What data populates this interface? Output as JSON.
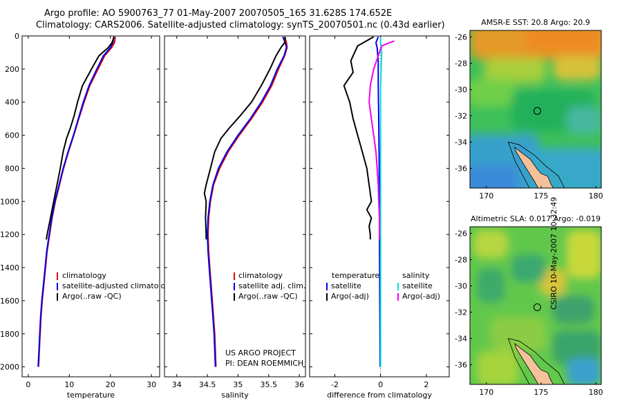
{
  "header": {
    "line1": "Argo profile: AO 5900763_77 01-May-2007 20070505_165 31.628S 174.652E",
    "line2": "Climatology: CARS2006. Satellite-adjusted climatology: synTS_20070501.nc (0.43d earlier)"
  },
  "credit": {
    "project": "US ARGO PROJECT",
    "pi": "PI: DEAN ROEMMICH",
    "vertical": "CSIRO 10-May-2007 10:32:49"
  },
  "colors": {
    "climatology": "#dd0000",
    "satellite": "#0000ee",
    "argo": "#000000",
    "sal_satellite": "#00dddd",
    "sal_argo": "#ee00ee"
  },
  "chart_data": [
    {
      "type": "line",
      "id": "temperature",
      "xlabel": "temperature",
      "ylabel": "",
      "xlim": [
        -1.5,
        32
      ],
      "ylim": [
        2060,
        0
      ],
      "xticks": [
        0,
        10,
        20,
        30
      ],
      "yticks": [
        0,
        200,
        400,
        600,
        800,
        1000,
        1200,
        1400,
        1600,
        1800,
        2000
      ],
      "legend": [
        "climatology",
        "satellite-adjusted climatology",
        "Argo(..raw -QC)"
      ],
      "series": [
        {
          "name": "climatology",
          "color": "#dd0000",
          "points": [
            [
              21.2,
              5
            ],
            [
              21.0,
              40
            ],
            [
              20.3,
              70
            ],
            [
              18.6,
              120
            ],
            [
              17.0,
              200
            ],
            [
              15.0,
              300
            ],
            [
              13.6,
              400
            ],
            [
              12.3,
              500
            ],
            [
              11.1,
              600
            ],
            [
              9.8,
              700
            ],
            [
              8.6,
              800
            ],
            [
              7.6,
              900
            ],
            [
              6.6,
              1000
            ],
            [
              5.8,
              1100
            ],
            [
              5.2,
              1200
            ],
            [
              4.6,
              1300
            ],
            [
              4.2,
              1400
            ],
            [
              3.8,
              1500
            ],
            [
              3.4,
              1600
            ],
            [
              3.1,
              1700
            ],
            [
              2.9,
              1800
            ],
            [
              2.7,
              1900
            ],
            [
              2.5,
              2000
            ]
          ]
        },
        {
          "name": "satellite",
          "color": "#0000ee",
          "points": [
            [
              20.8,
              5
            ],
            [
              20.6,
              40
            ],
            [
              20.0,
              70
            ],
            [
              18.3,
              120
            ],
            [
              16.7,
              200
            ],
            [
              14.8,
              300
            ],
            [
              13.4,
              400
            ],
            [
              12.2,
              500
            ],
            [
              11.0,
              600
            ],
            [
              9.7,
              700
            ],
            [
              8.5,
              800
            ],
            [
              7.5,
              900
            ],
            [
              6.5,
              1000
            ],
            [
              5.7,
              1100
            ],
            [
              5.1,
              1200
            ],
            [
              4.5,
              1300
            ],
            [
              4.1,
              1400
            ],
            [
              3.7,
              1500
            ],
            [
              3.3,
              1600
            ],
            [
              3.0,
              1700
            ],
            [
              2.8,
              1800
            ],
            [
              2.6,
              1900
            ],
            [
              2.4,
              2000
            ]
          ]
        },
        {
          "name": "Argo",
          "color": "#000000",
          "points": [
            [
              20.9,
              5
            ],
            [
              20.4,
              40
            ],
            [
              19.5,
              70
            ],
            [
              17.2,
              120
            ],
            [
              15.4,
              200
            ],
            [
              13.2,
              300
            ],
            [
              12.0,
              400
            ],
            [
              11.2,
              480
            ],
            [
              10.2,
              560
            ],
            [
              9.3,
              620
            ],
            [
              8.5,
              700
            ],
            [
              7.8,
              800
            ],
            [
              7.0,
              900
            ],
            [
              6.2,
              1000
            ],
            [
              5.4,
              1100
            ],
            [
              4.6,
              1200
            ],
            [
              4.4,
              1230
            ]
          ]
        }
      ]
    },
    {
      "type": "line",
      "id": "salinity",
      "xlabel": "salinity",
      "ylabel": "",
      "xlim": [
        33.8,
        36.1
      ],
      "ylim": [
        2060,
        0
      ],
      "xticks": [
        34,
        34.5,
        35,
        35.5,
        36
      ],
      "legend": [
        "climatology",
        "satellite adj. clim.",
        "Argo(..raw -QC)"
      ],
      "series": [
        {
          "name": "climatology",
          "color": "#dd0000",
          "points": [
            [
              35.76,
              5
            ],
            [
              35.79,
              40
            ],
            [
              35.8,
              70
            ],
            [
              35.76,
              120
            ],
            [
              35.66,
              200
            ],
            [
              35.55,
              300
            ],
            [
              35.4,
              400
            ],
            [
              35.22,
              500
            ],
            [
              35.02,
              600
            ],
            [
              34.84,
              700
            ],
            [
              34.7,
              800
            ],
            [
              34.6,
              900
            ],
            [
              34.55,
              1000
            ],
            [
              34.52,
              1100
            ],
            [
              34.51,
              1200
            ],
            [
              34.52,
              1300
            ],
            [
              34.54,
              1400
            ],
            [
              34.56,
              1500
            ],
            [
              34.58,
              1600
            ],
            [
              34.6,
              1700
            ],
            [
              34.62,
              1800
            ],
            [
              34.63,
              1900
            ],
            [
              34.64,
              2000
            ]
          ]
        },
        {
          "name": "satellite",
          "color": "#0000ee",
          "points": [
            [
              35.73,
              5
            ],
            [
              35.77,
              40
            ],
            [
              35.79,
              70
            ],
            [
              35.75,
              120
            ],
            [
              35.64,
              200
            ],
            [
              35.53,
              300
            ],
            [
              35.38,
              400
            ],
            [
              35.2,
              500
            ],
            [
              35.0,
              600
            ],
            [
              34.82,
              700
            ],
            [
              34.68,
              800
            ],
            [
              34.59,
              900
            ],
            [
              34.54,
              1000
            ],
            [
              34.51,
              1100
            ],
            [
              34.5,
              1200
            ],
            [
              34.51,
              1300
            ],
            [
              34.53,
              1400
            ],
            [
              34.55,
              1500
            ],
            [
              34.57,
              1600
            ],
            [
              34.59,
              1700
            ],
            [
              34.61,
              1800
            ],
            [
              34.62,
              1900
            ],
            [
              34.63,
              2000
            ]
          ]
        },
        {
          "name": "Argo",
          "color": "#000000",
          "points": [
            [
              35.77,
              5
            ],
            [
              35.76,
              40
            ],
            [
              35.7,
              70
            ],
            [
              35.62,
              120
            ],
            [
              35.52,
              200
            ],
            [
              35.38,
              300
            ],
            [
              35.22,
              400
            ],
            [
              35.04,
              480
            ],
            [
              34.85,
              560
            ],
            [
              34.72,
              620
            ],
            [
              34.62,
              700
            ],
            [
              34.55,
              800
            ],
            [
              34.48,
              900
            ],
            [
              34.45,
              950
            ],
            [
              34.48,
              1000
            ],
            [
              34.47,
              1100
            ],
            [
              34.48,
              1200
            ],
            [
              34.48,
              1230
            ]
          ]
        }
      ]
    },
    {
      "type": "line",
      "id": "difference",
      "xlabel": "difference from climatology",
      "ylabel": "",
      "xlim": [
        -3.1,
        3.0
      ],
      "ylim": [
        2060,
        0
      ],
      "xticks": [
        -2,
        0,
        2
      ],
      "legend_left": [
        "temperature",
        "satellite",
        "Argo(-adj)"
      ],
      "legend_right": [
        "salinity",
        "satellite",
        "Argo(-adj)"
      ],
      "series": [
        {
          "name": "temperature satellite",
          "color": "#0000ee",
          "points": [
            [
              -0.1,
              5
            ],
            [
              -0.2,
              40
            ],
            [
              -0.15,
              70
            ],
            [
              -0.1,
              150
            ],
            [
              -0.1,
              300
            ],
            [
              -0.08,
              500
            ],
            [
              -0.06,
              800
            ],
            [
              -0.05,
              1100
            ],
            [
              -0.04,
              1400
            ],
            [
              -0.03,
              1700
            ],
            [
              -0.02,
              2000
            ]
          ]
        },
        {
          "name": "temperature Argo",
          "color": "#000000",
          "points": [
            [
              -0.3,
              5
            ],
            [
              -1.0,
              60
            ],
            [
              -1.3,
              150
            ],
            [
              -1.2,
              220
            ],
            [
              -1.6,
              300
            ],
            [
              -1.35,
              400
            ],
            [
              -1.2,
              500
            ],
            [
              -1.0,
              600
            ],
            [
              -0.9,
              650
            ],
            [
              -0.8,
              700
            ],
            [
              -0.6,
              800
            ],
            [
              -0.5,
              900
            ],
            [
              -0.4,
              1000
            ],
            [
              -0.6,
              1050
            ],
            [
              -0.4,
              1100
            ],
            [
              -0.5,
              1150
            ],
            [
              -0.45,
              1200
            ],
            [
              -0.45,
              1230
            ]
          ]
        },
        {
          "name": "salinity satellite",
          "color": "#00dddd",
          "points": [
            [
              0.0,
              5
            ],
            [
              0.0,
              40
            ],
            [
              0.05,
              100
            ],
            [
              0.0,
              300
            ],
            [
              0.0,
              600
            ],
            [
              0.0,
              900
            ],
            [
              0.0,
              1200
            ],
            [
              0.0,
              1500
            ],
            [
              0.0,
              1800
            ],
            [
              0.0,
              2000
            ]
          ]
        },
        {
          "name": "salinity Argo",
          "color": "#ee00ee",
          "points": [
            [
              0.6,
              30
            ],
            [
              0.05,
              60
            ],
            [
              -0.1,
              120
            ],
            [
              -0.3,
              200
            ],
            [
              -0.45,
              300
            ],
            [
              -0.5,
              400
            ],
            [
              -0.4,
              500
            ],
            [
              -0.3,
              600
            ],
            [
              -0.2,
              700
            ],
            [
              -0.15,
              800
            ],
            [
              -0.1,
              900
            ],
            [
              -0.08,
              1000
            ],
            [
              -0.05,
              1100
            ],
            [
              -0.05,
              1200
            ],
            [
              -0.05,
              1230
            ]
          ]
        }
      ]
    },
    {
      "type": "heatmap",
      "id": "sst_map",
      "title": "AMSR-E SST: 20.8  Argo: 20.9",
      "xticks": [
        170,
        175,
        180
      ],
      "yticks": [
        -26,
        -28,
        -30,
        -32,
        -34,
        -36
      ],
      "xlim": [
        168.5,
        180.5
      ],
      "ylim": [
        -37.5,
        -25.5
      ],
      "marker": {
        "lon": 174.652,
        "lat": -31.628
      }
    },
    {
      "type": "heatmap",
      "id": "sla_map",
      "title": "Altimetric SLA: 0.017  Argo: -0.019",
      "xticks": [
        170,
        175,
        180
      ],
      "yticks": [
        -26,
        -28,
        -30,
        -32,
        -34,
        -36
      ],
      "xlim": [
        168.5,
        180.5
      ],
      "ylim": [
        -37.5,
        -25.5
      ],
      "marker": {
        "lon": 174.652,
        "lat": -31.628
      }
    }
  ]
}
